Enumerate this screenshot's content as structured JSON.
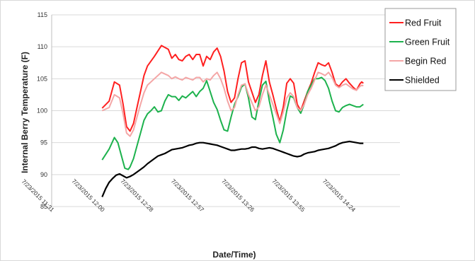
{
  "chart_data": {
    "type": "line",
    "title": "",
    "xlabel": "Date/Time)",
    "ylabel": "Internal Berry Temperature (F)",
    "ylim": [
      85,
      115
    ],
    "yticks": [
      85,
      90,
      95,
      100,
      105,
      110,
      115
    ],
    "xlim": [
      0,
      200
    ],
    "xticks": [
      {
        "v": 0,
        "label": "7/23/2015 11:31"
      },
      {
        "v": 29,
        "label": "7/23/2015 12:00"
      },
      {
        "v": 57,
        "label": "7/23/2015 12:28"
      },
      {
        "v": 86,
        "label": "7/23/2015 12:57"
      },
      {
        "v": 115,
        "label": "7/23/2015 13:26"
      },
      {
        "v": 144,
        "label": "7/23/2015 13:55"
      },
      {
        "v": 173,
        "label": "7/23/2015 14:24"
      }
    ],
    "grid": "horizontal",
    "legend_position": "top-right",
    "series": [
      {
        "name": "Red Fruit",
        "color": "#ff2020",
        "x": [
          29,
          33,
          36,
          39,
          41,
          43,
          45,
          47,
          49,
          51,
          53,
          55,
          59,
          63,
          67,
          69,
          71,
          73,
          75,
          77,
          79,
          81,
          83,
          85,
          87,
          89,
          91,
          93,
          95,
          97,
          99,
          101,
          103,
          105,
          107,
          109,
          111,
          113,
          117,
          119,
          121,
          123,
          125,
          127,
          129,
          131,
          133,
          135,
          137,
          139,
          141,
          143,
          145,
          147,
          149,
          151,
          153,
          155,
          157,
          159,
          161,
          163,
          165,
          167,
          169,
          171,
          173,
          175,
          177,
          178,
          179
        ],
        "y": [
          100.4,
          101.5,
          104.5,
          104.0,
          101.0,
          97.5,
          96.8,
          98.0,
          100.5,
          103.0,
          105.5,
          107.0,
          108.5,
          110.2,
          109.6,
          108.2,
          108.8,
          108.0,
          107.8,
          108.5,
          108.8,
          108.0,
          108.8,
          108.8,
          107.0,
          108.5,
          108.0,
          109.2,
          109.8,
          108.5,
          106.2,
          103.0,
          101.3,
          102.0,
          105.0,
          107.5,
          107.8,
          104.5,
          101.3,
          102.5,
          105.5,
          107.8,
          104.5,
          102.5,
          100.3,
          98.3,
          100.6,
          104.3,
          105.0,
          104.3,
          101.0,
          100.0,
          101.5,
          103.0,
          104.3,
          106.0,
          107.5,
          107.2,
          107.0,
          107.5,
          106.0,
          104.2,
          103.8,
          104.5,
          105.0,
          104.3,
          103.7,
          103.2,
          104.2,
          104.5,
          104.3
        ]
      },
      {
        "name": "Green Fruit",
        "color": "#1db24d",
        "x": [
          29,
          33,
          36,
          38,
          40,
          42,
          44,
          45,
          47,
          49,
          51,
          53,
          55,
          57,
          59,
          61,
          63,
          65,
          67,
          69,
          71,
          73,
          75,
          77,
          79,
          81,
          83,
          85,
          87,
          89,
          91,
          93,
          95,
          97,
          99,
          101,
          103,
          105,
          107,
          109,
          111,
          113,
          115,
          117,
          119,
          121,
          123,
          125,
          127,
          129,
          131,
          133,
          135,
          137,
          139,
          141,
          143,
          145,
          147,
          149,
          151,
          153,
          155,
          157,
          159,
          161,
          163,
          165,
          167,
          169,
          171,
          173,
          175,
          177,
          178,
          179
        ],
        "y": [
          92.3,
          94.0,
          95.8,
          95.0,
          93.0,
          91.0,
          90.8,
          91.2,
          92.5,
          94.5,
          96.5,
          98.5,
          99.5,
          100.0,
          100.6,
          99.8,
          100.0,
          101.5,
          102.5,
          102.2,
          102.2,
          101.6,
          102.3,
          102.0,
          102.5,
          103.0,
          102.2,
          103.0,
          103.5,
          104.7,
          103.0,
          101.3,
          100.2,
          98.5,
          97.0,
          96.8,
          99.0,
          101.0,
          102.2,
          103.7,
          104.2,
          102.0,
          99.0,
          98.6,
          101.5,
          104.0,
          104.6,
          101.5,
          99.0,
          96.3,
          95.0,
          97.0,
          100.0,
          102.3,
          102.0,
          100.5,
          99.6,
          101.0,
          103.0,
          104.0,
          105.0,
          105.0,
          105.2,
          104.7,
          103.5,
          101.5,
          100.0,
          99.8,
          100.5,
          100.8,
          101.0,
          100.8,
          100.6,
          100.6,
          100.8,
          101.0
        ]
      },
      {
        "name": "Begin Red",
        "color": "#f4a6a6",
        "x": [
          29,
          33,
          36,
          39,
          41,
          43,
          45,
          47,
          49,
          51,
          53,
          55,
          59,
          63,
          67,
          69,
          71,
          73,
          75,
          77,
          79,
          81,
          83,
          85,
          87,
          89,
          91,
          93,
          95,
          97,
          99,
          101,
          103,
          105,
          107,
          109,
          111,
          113,
          117,
          119,
          121,
          123,
          125,
          127,
          129,
          131,
          133,
          135,
          137,
          139,
          141,
          143,
          145,
          147,
          149,
          151,
          153,
          155,
          157,
          159,
          161,
          163,
          165,
          167,
          169,
          171,
          173,
          175,
          177,
          178,
          179
        ],
        "y": [
          100.0,
          100.5,
          102.5,
          102.0,
          99.5,
          96.5,
          96.0,
          97.0,
          99.0,
          101.0,
          102.8,
          104.0,
          105.0,
          106.0,
          105.5,
          105.0,
          105.3,
          105.0,
          104.8,
          105.2,
          105.0,
          104.8,
          105.2,
          105.2,
          104.5,
          105.0,
          104.8,
          105.5,
          106.0,
          105.0,
          103.5,
          101.5,
          100.0,
          100.5,
          102.5,
          104.0,
          104.2,
          102.5,
          100.0,
          100.6,
          102.5,
          104.0,
          102.5,
          101.0,
          99.5,
          98.0,
          99.8,
          102.0,
          102.8,
          102.2,
          100.5,
          100.0,
          101.0,
          102.5,
          103.5,
          104.8,
          106.0,
          105.8,
          105.5,
          106.0,
          105.2,
          104.0,
          103.6,
          104.0,
          104.2,
          103.8,
          103.4,
          103.2,
          103.8,
          104.0,
          103.9
        ]
      },
      {
        "name": "Shielded",
        "color": "#000000",
        "x": [
          29,
          31,
          33,
          35,
          37,
          39,
          41,
          43,
          45,
          47,
          49,
          51,
          53,
          55,
          57,
          59,
          61,
          63,
          65,
          67,
          69,
          71,
          73,
          75,
          77,
          79,
          81,
          83,
          85,
          87,
          89,
          91,
          93,
          95,
          97,
          99,
          101,
          103,
          105,
          107,
          109,
          111,
          113,
          115,
          117,
          119,
          121,
          123,
          125,
          127,
          129,
          131,
          133,
          135,
          137,
          139,
          141,
          143,
          145,
          147,
          149,
          151,
          153,
          155,
          157,
          159,
          161,
          163,
          165,
          167,
          169,
          171,
          173,
          175,
          177,
          179
        ],
        "y": [
          86.5,
          87.8,
          88.8,
          89.4,
          89.9,
          90.1,
          89.8,
          89.5,
          89.7,
          90.0,
          90.4,
          90.8,
          91.2,
          91.7,
          92.1,
          92.5,
          92.9,
          93.1,
          93.3,
          93.6,
          93.9,
          94.0,
          94.1,
          94.2,
          94.4,
          94.6,
          94.7,
          94.9,
          95.0,
          95.0,
          94.9,
          94.8,
          94.7,
          94.6,
          94.4,
          94.2,
          94.0,
          93.8,
          93.8,
          93.9,
          94.0,
          94.0,
          94.1,
          94.3,
          94.3,
          94.1,
          94.0,
          94.1,
          94.2,
          94.1,
          93.9,
          93.7,
          93.5,
          93.3,
          93.1,
          92.9,
          92.8,
          92.9,
          93.2,
          93.4,
          93.5,
          93.6,
          93.8,
          93.9,
          94.0,
          94.1,
          94.3,
          94.5,
          94.8,
          95.0,
          95.1,
          95.2,
          95.1,
          95.0,
          94.9,
          94.9
        ]
      }
    ]
  }
}
